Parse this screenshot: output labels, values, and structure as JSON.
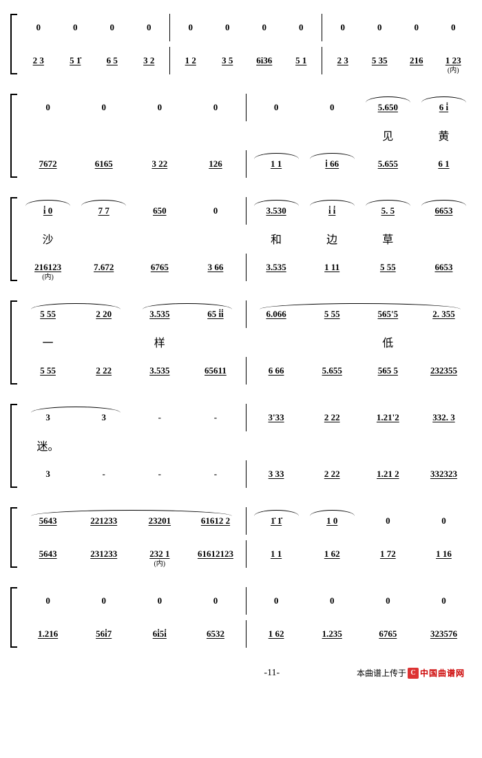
{
  "page_number": "-11-",
  "credit_prefix": "本曲谱上传于",
  "credit_logo": "C",
  "credit_site": "中国曲谱网",
  "annotations": {
    "nei": "(内)"
  },
  "lyrics": {
    "jian": "见",
    "huang": "黄",
    "sha": "沙",
    "he": "和",
    "bian": "边",
    "cao": "草",
    "yi": "一",
    "yang": "样",
    "di": "低",
    "mi": "迷。"
  },
  "systems": [
    {
      "rows": [
        {
          "type": "upper",
          "measures": [
            {
              "cells": [
                "0",
                "0",
                "0",
                "0"
              ]
            },
            {
              "cells": [
                "0",
                "0",
                "0",
                "0"
              ]
            },
            {
              "cells": [
                "0",
                "0",
                "0",
                "0"
              ]
            }
          ]
        },
        {
          "type": "lower",
          "measures": [
            {
              "cells": [
                "2 3",
                "5 1̇",
                "6 5",
                "3 2"
              ],
              "u": true
            },
            {
              "cells": [
                "1 2",
                "3 5",
                "6i36",
                "5 1"
              ],
              "u": true
            },
            {
              "cells": [
                "2 3",
                "5 35",
                "216",
                "1 23"
              ],
              "u": true,
              "annot_last": "nei"
            }
          ]
        }
      ]
    },
    {
      "rows": [
        {
          "type": "upper",
          "measures": [
            {
              "cells": [
                "0",
                "0",
                "0",
                "0"
              ]
            },
            {
              "cells": [
                "0",
                "0",
                "5.650",
                "6 i̇"
              ],
              "u_from": 2,
              "tie": [
                2,
                3
              ]
            }
          ]
        },
        {
          "type": "lyrics",
          "measures": [
            {
              "cells": [
                "",
                "",
                "",
                ""
              ]
            },
            {
              "cells": [
                "",
                "",
                "见",
                "黄"
              ],
              "bind": [
                "",
                "",
                "lyrics.jian",
                "lyrics.huang"
              ]
            }
          ]
        },
        {
          "type": "lower",
          "measures": [
            {
              "cells": [
                "7672",
                "6165",
                "3 22",
                "126"
              ],
              "u": true
            },
            {
              "cells": [
                "1 1",
                "ⅰ 66",
                "5.655",
                "6 1"
              ],
              "u": true,
              "tie": [
                0,
                1
              ]
            }
          ]
        }
      ]
    },
    {
      "rows": [
        {
          "type": "upper",
          "measures": [
            {
              "cells": [
                "i̇  0",
                "7  7",
                "650",
                "0"
              ],
              "u_idx": [
                0,
                1,
                2
              ],
              "tie": [
                0,
                1
              ]
            },
            {
              "cells": [
                "3.530",
                "i̇ i̇",
                "5. 5",
                "6653"
              ],
              "u": true,
              "tie": [
                0,
                1,
                2,
                3
              ]
            }
          ]
        },
        {
          "type": "lyrics",
          "measures": [
            {
              "cells": [
                "沙",
                "",
                "",
                ""
              ],
              "bind": [
                "lyrics.sha",
                "",
                "",
                ""
              ]
            },
            {
              "cells": [
                "和",
                "边",
                "草",
                ""
              ],
              "bind": [
                "lyrics.he",
                "lyrics.bian",
                "lyrics.cao",
                ""
              ]
            }
          ]
        },
        {
          "type": "lower",
          "measures": [
            {
              "cells": [
                "216123",
                "7.672",
                "6765",
                "3 66"
              ],
              "u": true,
              "annot_first": "nei"
            },
            {
              "cells": [
                "3.535",
                "1 11",
                "5 55",
                "6653"
              ],
              "u": true
            }
          ]
        }
      ]
    },
    {
      "rows": [
        {
          "type": "upper",
          "measures": [
            {
              "cells": [
                "5 55",
                "2 20",
                "3.535",
                "65 i̇i̇"
              ],
              "u": true,
              "tie_long": [
                [
                  0,
                  1
                ],
                [
                  2,
                  3
                ]
              ]
            },
            {
              "cells": [
                "6.066",
                "5 55",
                "565'5",
                "2. 355"
              ],
              "u": true,
              "tie_long": [
                [
                  0,
                  3
                ]
              ]
            }
          ]
        },
        {
          "type": "lyrics",
          "measures": [
            {
              "cells": [
                "一",
                "",
                "样",
                ""
              ],
              "bind": [
                "lyrics.yi",
                "",
                "lyrics.yang",
                ""
              ]
            },
            {
              "cells": [
                "",
                "",
                "低",
                ""
              ],
              "bind": [
                "",
                "",
                "lyrics.di",
                ""
              ]
            }
          ]
        },
        {
          "type": "lower",
          "measures": [
            {
              "cells": [
                "5 55",
                "2 22",
                "3.535",
                "65611"
              ],
              "u": true
            },
            {
              "cells": [
                "6 66",
                "5.655",
                "565 5",
                "232355"
              ],
              "u": true
            }
          ]
        }
      ]
    },
    {
      "rows": [
        {
          "type": "upper",
          "measures": [
            {
              "cells": [
                "3",
                "3",
                "-",
                "-"
              ],
              "tie_long": [
                [
                  0,
                  1
                ]
              ]
            },
            {
              "cells": [
                "3'33",
                "2 22",
                "1.21'2",
                "332. 3"
              ],
              "u": true
            }
          ]
        },
        {
          "type": "lyrics",
          "measures": [
            {
              "cells": [
                "迷。",
                "",
                "",
                ""
              ],
              "bind": [
                "lyrics.mi",
                "",
                "",
                ""
              ]
            },
            {
              "cells": [
                "",
                "",
                "",
                ""
              ]
            }
          ]
        },
        {
          "type": "lower",
          "measures": [
            {
              "cells": [
                "3",
                "-",
                "-",
                "-"
              ]
            },
            {
              "cells": [
                "3 33",
                "2 22",
                "1.21 2",
                "332323"
              ],
              "u": true
            }
          ]
        }
      ]
    },
    {
      "rows": [
        {
          "type": "upper",
          "measures": [
            {
              "cells": [
                "5643",
                "221233",
                "23201",
                "61612 2"
              ],
              "u": true,
              "tie_long": [
                [
                  0,
                  3
                ]
              ]
            },
            {
              "cells": [
                "1̇  1̇",
                "1 0",
                "0",
                "0"
              ],
              "u_idx": [
                0,
                1
              ],
              "tie": [
                0,
                1
              ]
            }
          ]
        },
        {
          "type": "lower",
          "measures": [
            {
              "cells": [
                "5643",
                "231233",
                "232 1",
                "61612123"
              ],
              "u": true,
              "annot_idx": {
                "2": "nei"
              }
            },
            {
              "cells": [
                "1 1",
                "1 62",
                "1 72",
                "1 16"
              ],
              "u": true
            }
          ]
        }
      ]
    },
    {
      "rows": [
        {
          "type": "upper",
          "measures": [
            {
              "cells": [
                "0",
                "0",
                "0",
                "0"
              ]
            },
            {
              "cells": [
                "0",
                "0",
                "0",
                "0"
              ]
            }
          ]
        },
        {
          "type": "lower",
          "measures": [
            {
              "cells": [
                "1.216",
                "56i̇7",
                "6i̇5i̇",
                "6532"
              ],
              "u": true
            },
            {
              "cells": [
                "1 62",
                "1.235",
                "6765",
                "323576"
              ],
              "u": true
            }
          ]
        }
      ]
    }
  ]
}
